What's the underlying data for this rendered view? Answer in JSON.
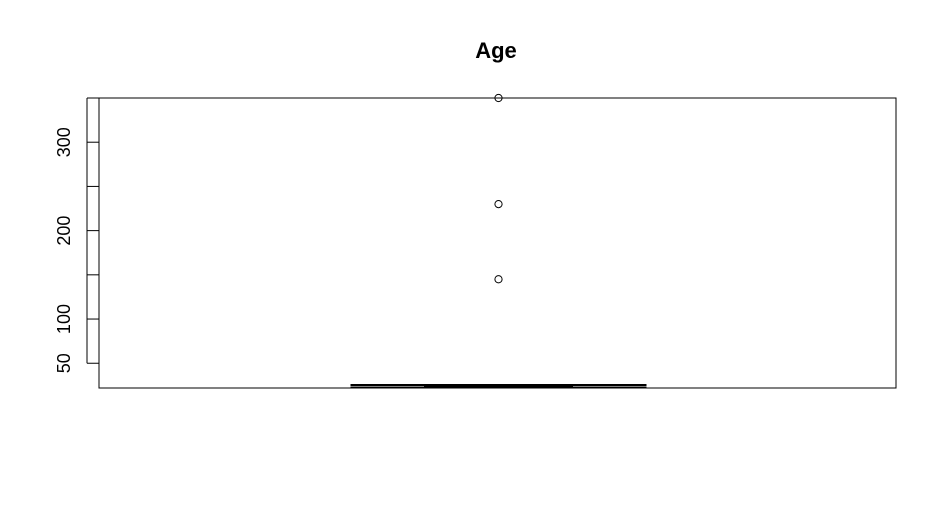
{
  "chart_data": {
    "type": "boxplot",
    "title": "Age",
    "xlabel": "",
    "ylabel": "",
    "ylim": [
      22,
      350
    ],
    "yticks": [
      50,
      100,
      150,
      200,
      250,
      300,
      350
    ],
    "ytick_labels": [
      "50",
      "100",
      "",
      "200",
      "",
      "300",
      ""
    ],
    "grid": false,
    "box": {
      "whisker_low": 22,
      "q1": 23,
      "median": 24,
      "q3": 25,
      "whisker_high": 26
    },
    "outliers": [
      145,
      230,
      350
    ]
  }
}
